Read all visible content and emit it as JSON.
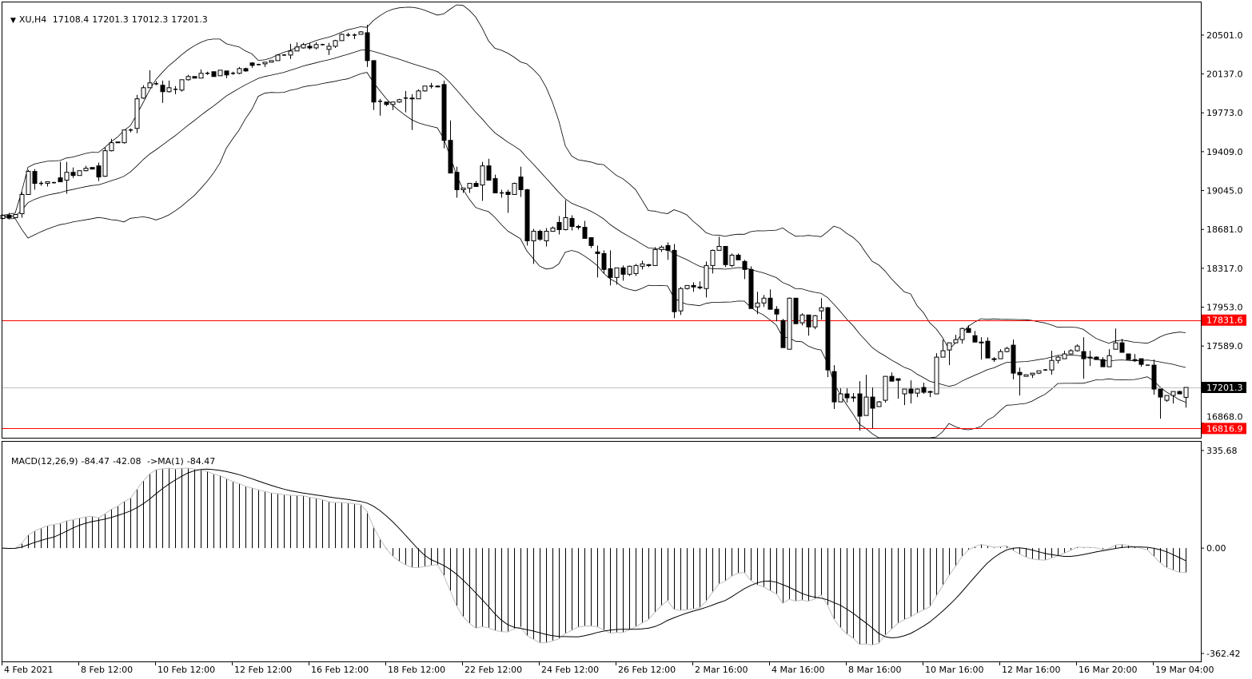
{
  "header": {
    "symbol": "XU,H4",
    "open": "17108.4",
    "high": "17201.3",
    "low": "17012.3",
    "close": "17201.3"
  },
  "macd_header": {
    "name": "MACD(12,26,9)",
    "main": "-84.47",
    "signal": "-42.08",
    "ma_label": "->MA(1)",
    "ma_value": "-84.47"
  },
  "colors": {
    "bull_body": "#ffffff",
    "bear_body": "#000000",
    "level_line": "#ff0000",
    "bid_line": "#c0c0c0",
    "bid_label_bg": "#000000",
    "level_label_bg": "#ff0000"
  },
  "chart_data": [
    {
      "type": "candlestick",
      "timeframe": "H4",
      "fields": [
        "open",
        "high",
        "low",
        "close"
      ],
      "candles": [
        [
          18784,
          18821,
          18776,
          18813
        ],
        [
          18813,
          18836,
          18776,
          18791
        ],
        [
          18791,
          18821,
          18791,
          18821
        ],
        [
          18828,
          19030,
          18791,
          19008
        ],
        [
          19008,
          19239,
          19008,
          19224
        ],
        [
          19224,
          19246,
          19053,
          19112
        ],
        [
          19112,
          19134,
          19090,
          19112
        ],
        [
          19112,
          19127,
          19083,
          19127
        ],
        [
          19119,
          19127,
          19112,
          19119
        ],
        [
          19164,
          19314,
          19127,
          19127
        ],
        [
          19142,
          19314,
          19015,
          19216
        ],
        [
          19216,
          19261,
          19164,
          19186
        ],
        [
          19186,
          19231,
          19186,
          19231
        ],
        [
          19231,
          19276,
          19224,
          19254
        ],
        [
          19261,
          19261,
          19246,
          19246
        ],
        [
          19276,
          19306,
          19134,
          19172
        ],
        [
          19179,
          19448,
          19172,
          19418
        ],
        [
          19418,
          19530,
          19411,
          19493
        ],
        [
          19500,
          19500,
          19493,
          19493
        ],
        [
          19493,
          19612,
          19485,
          19612
        ],
        [
          19612,
          19627,
          19590,
          19612
        ],
        [
          19627,
          19941,
          19582,
          19904
        ],
        [
          19911,
          20031,
          19904,
          20008
        ],
        [
          20008,
          20172,
          20008,
          20053
        ],
        [
          20045,
          20068,
          20031,
          20045
        ],
        [
          20031,
          20075,
          19866,
          19971
        ],
        [
          19971,
          20075,
          19963,
          20008
        ],
        [
          19993,
          20023,
          19948,
          19993
        ],
        [
          19986,
          20083,
          19971,
          20083
        ],
        [
          20083,
          20128,
          20075,
          20113
        ],
        [
          20113,
          20113,
          20098,
          20098
        ],
        [
          20098,
          20180,
          20098,
          20143
        ],
        [
          20143,
          20158,
          20128,
          20143
        ],
        [
          20158,
          20158,
          20113,
          20113
        ],
        [
          20120,
          20172,
          20120,
          20172
        ],
        [
          20165,
          20165,
          20098,
          20128
        ],
        [
          20143,
          20158,
          20128,
          20143
        ],
        [
          20143,
          20202,
          20135,
          20187
        ],
        [
          20187,
          20195,
          20158,
          20165
        ],
        [
          20240,
          20247,
          20195,
          20217
        ],
        [
          20225,
          20232,
          20217,
          20225
        ],
        [
          20232,
          20247,
          20202,
          20247
        ],
        [
          20247,
          20262,
          20247,
          20262
        ],
        [
          20262,
          20322,
          20262,
          20314
        ],
        [
          20314,
          20322,
          20307,
          20314
        ],
        [
          20314,
          20419,
          20277,
          20352
        ],
        [
          20352,
          20434,
          20352,
          20389
        ],
        [
          20381,
          20427,
          20374,
          20412
        ],
        [
          20396,
          20427,
          20367,
          20381
        ],
        [
          20381,
          20434,
          20367,
          20412
        ],
        [
          20412,
          20419,
          20404,
          20412
        ],
        [
          20367,
          20427,
          20314,
          20396
        ],
        [
          20396,
          20456,
          20381,
          20449
        ],
        [
          20449,
          20516,
          20449,
          20508
        ],
        [
          20501,
          20523,
          20486,
          20501
        ],
        [
          20501,
          20516,
          20464,
          20501
        ],
        [
          20508,
          20538,
          20508,
          20531
        ],
        [
          20523,
          20598,
          20202,
          20262
        ],
        [
          20262,
          20262,
          19799,
          19874
        ],
        [
          19881,
          19904,
          19747,
          19881
        ],
        [
          19874,
          19874,
          19836,
          19851
        ],
        [
          19851,
          19874,
          19799,
          19874
        ],
        [
          19874,
          19904,
          19866,
          19896
        ],
        [
          19911,
          19978,
          19777,
          19911
        ],
        [
          19911,
          19948,
          19612,
          19904
        ],
        [
          19904,
          19993,
          19904,
          19978
        ],
        [
          19978,
          20023,
          19971,
          20023
        ],
        [
          20023,
          20053,
          20001,
          20023
        ],
        [
          20023,
          20031,
          20016,
          20016
        ],
        [
          20038,
          20075,
          19441,
          19515
        ],
        [
          19515,
          19702,
          19209,
          19209
        ],
        [
          19216,
          19269,
          18978,
          19053
        ],
        [
          19053,
          19068,
          19023,
          19068
        ],
        [
          19068,
          19112,
          19023,
          19112
        ],
        [
          19112,
          19134,
          19083,
          19083
        ],
        [
          19097,
          19314,
          18948,
          19276
        ],
        [
          19276,
          19343,
          19142,
          19142
        ],
        [
          19157,
          19194,
          19023,
          19023
        ],
        [
          19023,
          19053,
          18978,
          19023
        ],
        [
          19030,
          19053,
          18836,
          19008
        ],
        [
          19008,
          19119,
          19008,
          19112
        ],
        [
          19172,
          19269,
          18985,
          19053
        ],
        [
          19053,
          19060,
          18530,
          18574
        ],
        [
          18574,
          18686,
          18358,
          18664
        ],
        [
          18664,
          18679,
          18574,
          18589
        ],
        [
          18574,
          18694,
          18522,
          18664
        ],
        [
          18664,
          18709,
          18664,
          18694
        ],
        [
          18746,
          18806,
          18634,
          18679
        ],
        [
          18679,
          18955,
          18671,
          18791
        ],
        [
          18784,
          18813,
          18671,
          18709
        ],
        [
          18709,
          18724,
          18679,
          18701
        ],
        [
          18701,
          18761,
          18597,
          18597
        ],
        [
          18604,
          18604,
          18507,
          18530
        ],
        [
          18470,
          18530,
          18231,
          18455
        ],
        [
          18455,
          18485,
          18268,
          18306
        ],
        [
          18313,
          18485,
          18156,
          18231
        ],
        [
          18231,
          18321,
          18164,
          18321
        ],
        [
          18321,
          18343,
          18201,
          18261
        ],
        [
          18261,
          18343,
          18246,
          18336
        ],
        [
          18268,
          18358,
          18246,
          18343
        ],
        [
          18336,
          18388,
          18306,
          18358
        ],
        [
          18351,
          18358,
          18328,
          18343
        ],
        [
          18343,
          18515,
          18343,
          18493
        ],
        [
          18493,
          18530,
          18470,
          18515
        ],
        [
          18530,
          18560,
          18396,
          18485
        ],
        [
          18485,
          18545,
          17850,
          17910
        ],
        [
          17918,
          18142,
          17880,
          18127
        ],
        [
          18127,
          18156,
          18119,
          18156
        ],
        [
          18156,
          18186,
          18096,
          18142
        ],
        [
          18142,
          18194,
          18119,
          18134
        ],
        [
          18127,
          18380,
          18044,
          18343
        ],
        [
          18343,
          18493,
          18268,
          18485
        ],
        [
          18485,
          18612,
          18485,
          18522
        ],
        [
          18522,
          18522,
          18328,
          18351
        ],
        [
          18343,
          18455,
          18328,
          18440
        ],
        [
          18440,
          18455,
          18396,
          18396
        ],
        [
          18381,
          18396,
          18216,
          18306
        ],
        [
          18306,
          18336,
          17940,
          17940
        ],
        [
          17955,
          18097,
          17888,
          17992
        ],
        [
          17992,
          18067,
          17955,
          18037
        ],
        [
          18037,
          18119,
          17933,
          17933
        ],
        [
          17933,
          17962,
          17820,
          17888
        ],
        [
          17828,
          17843,
          17574,
          17574
        ],
        [
          17559,
          18044,
          17559,
          18037
        ],
        [
          18037,
          18037,
          17798,
          17798
        ],
        [
          17806,
          17895,
          17783,
          17880
        ],
        [
          17880,
          17880,
          17686,
          17768
        ],
        [
          17768,
          17880,
          17746,
          17873
        ],
        [
          17918,
          18037,
          17835,
          17948
        ],
        [
          17948,
          17955,
          17298,
          17365
        ],
        [
          17350,
          17410,
          16999,
          17066
        ],
        [
          17066,
          17193,
          17066,
          17141
        ],
        [
          17141,
          17193,
          17059,
          17104
        ],
        [
          17111,
          17148,
          17066,
          17104
        ],
        [
          17141,
          17260,
          16797,
          16932
        ],
        [
          16939,
          17320,
          16939,
          17111
        ],
        [
          17111,
          17201,
          16820,
          17007
        ],
        [
          17022,
          17074,
          17022,
          17066
        ],
        [
          17081,
          17305,
          17059,
          17305
        ],
        [
          17305,
          17342,
          17260,
          17260
        ],
        [
          17283,
          17283,
          17096,
          17268
        ],
        [
          17141,
          17186,
          17036,
          17186
        ],
        [
          17186,
          17268,
          17051,
          17148
        ],
        [
          17148,
          17193,
          17111,
          17186
        ],
        [
          17201,
          17246,
          17141,
          17156
        ],
        [
          17156,
          17171,
          17111,
          17163
        ],
        [
          17141,
          17522,
          17141,
          17485
        ],
        [
          17485,
          17649,
          17485,
          17545
        ],
        [
          17552,
          17619,
          17410,
          17619
        ],
        [
          17619,
          17694,
          17619,
          17649
        ],
        [
          17649,
          17761,
          17611,
          17753
        ],
        [
          17753,
          17783,
          17716,
          17716
        ],
        [
          17686,
          17731,
          17626,
          17626
        ],
        [
          17626,
          17671,
          17462,
          17619
        ],
        [
          17634,
          17671,
          17477,
          17477
        ],
        [
          17470,
          17485,
          17440,
          17462
        ],
        [
          17470,
          17559,
          17470,
          17537
        ],
        [
          17537,
          17582,
          17530,
          17567
        ],
        [
          17597,
          17649,
          17276,
          17335
        ],
        [
          17342,
          17387,
          17126,
          17320
        ],
        [
          17305,
          17320,
          17305,
          17320
        ],
        [
          17320,
          17335,
          17290,
          17335
        ],
        [
          17335,
          17357,
          17327,
          17357
        ],
        [
          17365,
          17372,
          17357,
          17365
        ],
        [
          17365,
          17544,
          17320,
          17454
        ],
        [
          17454,
          17499,
          17425,
          17485
        ],
        [
          17470,
          17544,
          17470,
          17515
        ],
        [
          17515,
          17559,
          17515,
          17545
        ],
        [
          17545,
          17604,
          17537,
          17589
        ],
        [
          17537,
          17671,
          17283,
          17470
        ],
        [
          17485,
          17544,
          17402,
          17477
        ],
        [
          17485,
          17492,
          17462,
          17462
        ],
        [
          17462,
          17485,
          17395,
          17395
        ],
        [
          17395,
          17559,
          17395,
          17499
        ],
        [
          17559,
          17753,
          17559,
          17619
        ],
        [
          17619,
          17656,
          17530,
          17530
        ],
        [
          17515,
          17515,
          17462,
          17462
        ],
        [
          17462,
          17515,
          17440,
          17454
        ],
        [
          17470,
          17470,
          17395,
          17417
        ],
        [
          17410,
          17410,
          17410,
          17410
        ],
        [
          17410,
          17462,
          17134,
          17186
        ],
        [
          17186,
          17186,
          16909,
          17111
        ],
        [
          17081,
          17126,
          17066,
          17126
        ],
        [
          17126,
          17163,
          17051,
          17163
        ],
        [
          17163,
          17171,
          17141,
          17141
        ],
        [
          17108.4,
          17201.3,
          17012.3,
          17201.3
        ]
      ],
      "overlay": "bollinger-bands",
      "price_ticks": [
        "20501.0",
        "20137.0",
        "19773.0",
        "19409.0",
        "19045.0",
        "18681.0",
        "18317.0",
        "17953.0",
        "17589.0",
        "16868.0"
      ],
      "ylim": [
        16730,
        20807
      ],
      "x_labels": [
        "4 Feb 2021",
        "8 Feb 12:00",
        "10 Feb 12:00",
        "12 Feb 12:00",
        "16 Feb 12:00",
        "18 Feb 12:00",
        "22 Feb 12:00",
        "24 Feb 12:00",
        "26 Feb 12:00",
        "2 Mar 16:00",
        "4 Mar 16:00",
        "8 Mar 16:00",
        "10 Mar 16:00",
        "12 Mar 16:00",
        "16 Mar 20:00",
        "19 Mar 04:00"
      ],
      "levels": [
        {
          "price": 17831.6,
          "label": "17831.6",
          "color": "#ff0000"
        },
        {
          "price": 16816.9,
          "label": "16816.9",
          "color": "#ff0000"
        }
      ],
      "bid": {
        "price": 17201.3,
        "label": "17201.3"
      },
      "grid": false
    },
    {
      "type": "bar",
      "indicator": "MACD(12,26,9)",
      "ticks": [
        "335.68",
        "0.00",
        "-362.42"
      ],
      "tick_values": [
        335.68,
        0,
        -362.42
      ],
      "ylim": [
        -389.8,
        365.8
      ],
      "grid": false
    }
  ]
}
